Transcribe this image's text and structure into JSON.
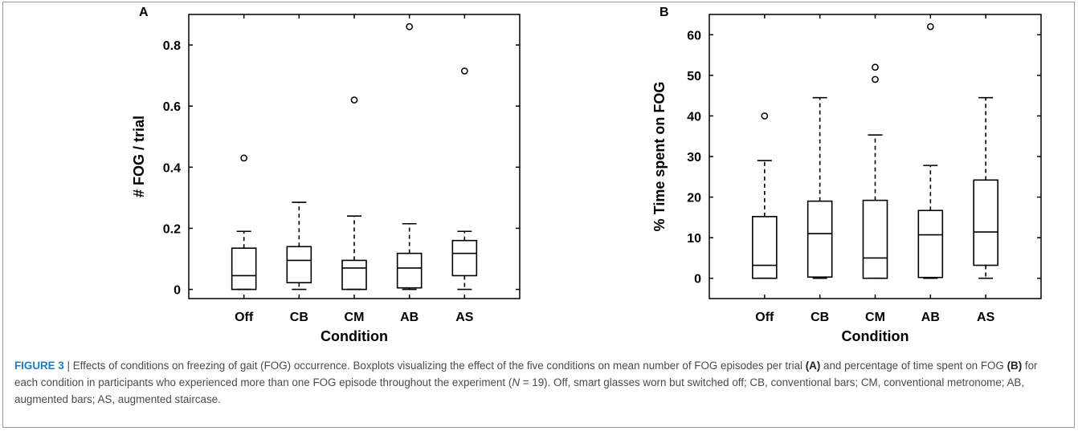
{
  "charts": [
    {
      "id": "A",
      "panel_label": "A",
      "ylabel": "# FOG / trial",
      "xlabel": "Condition",
      "yticks": [
        "0",
        "0.2",
        "0.4",
        "0.6",
        "0.8"
      ]
    },
    {
      "id": "B",
      "panel_label": "B",
      "ylabel": "% Time spent on FOG",
      "xlabel": "Condition",
      "yticks": [
        "0",
        "10",
        "20",
        "30",
        "40",
        "50",
        "60"
      ]
    }
  ],
  "chart_data": [
    {
      "type": "boxplot",
      "panel": "A",
      "xlabel": "Condition",
      "ylabel": "# FOG / trial",
      "ylim": [
        -0.03,
        0.9
      ],
      "yticks": [
        0,
        0.2,
        0.4,
        0.6,
        0.8
      ],
      "categories": [
        "Off",
        "CB",
        "CM",
        "AB",
        "AS"
      ],
      "boxes": [
        {
          "category": "Off",
          "whisker_low": 0.0,
          "q1": 0.0,
          "median": 0.045,
          "q3": 0.135,
          "whisker_high": 0.19,
          "outliers": [
            0.43
          ]
        },
        {
          "category": "CB",
          "whisker_low": 0.0,
          "q1": 0.022,
          "median": 0.095,
          "q3": 0.14,
          "whisker_high": 0.285,
          "outliers": []
        },
        {
          "category": "CM",
          "whisker_low": 0.0,
          "q1": 0.0,
          "median": 0.07,
          "q3": 0.095,
          "whisker_high": 0.24,
          "outliers": [
            0.62
          ]
        },
        {
          "category": "AB",
          "whisker_low": 0.0,
          "q1": 0.005,
          "median": 0.07,
          "q3": 0.118,
          "whisker_high": 0.215,
          "outliers": [
            0.86
          ]
        },
        {
          "category": "AS",
          "whisker_low": 0.0,
          "q1": 0.045,
          "median": 0.118,
          "q3": 0.16,
          "whisker_high": 0.19,
          "outliers": [
            0.715
          ]
        }
      ]
    },
    {
      "type": "boxplot",
      "panel": "B",
      "xlabel": "Condition",
      "ylabel": "% Time spent on FOG",
      "ylim": [
        -5,
        65
      ],
      "yticks": [
        0,
        10,
        20,
        30,
        40,
        50,
        60
      ],
      "categories": [
        "Off",
        "CB",
        "CM",
        "AB",
        "AS"
      ],
      "boxes": [
        {
          "category": "Off",
          "whisker_low": 0,
          "q1": 0,
          "median": 3.2,
          "q3": 15.2,
          "whisker_high": 29,
          "outliers": [
            40
          ]
        },
        {
          "category": "CB",
          "whisker_low": 0,
          "q1": 0.3,
          "median": 11,
          "q3": 19,
          "whisker_high": 44.5,
          "outliers": []
        },
        {
          "category": "CM",
          "whisker_low": 0,
          "q1": 0,
          "median": 5,
          "q3": 19.2,
          "whisker_high": 35.3,
          "outliers": [
            49,
            52
          ]
        },
        {
          "category": "AB",
          "whisker_low": 0,
          "q1": 0.2,
          "median": 10.7,
          "q3": 16.7,
          "whisker_high": 27.8,
          "outliers": [
            62
          ]
        },
        {
          "category": "AS",
          "whisker_low": 0,
          "q1": 3.2,
          "median": 11.4,
          "q3": 24.2,
          "whisker_high": 44.5,
          "outliers": []
        }
      ]
    }
  ],
  "caption": {
    "figure_label": "FIGURE 3",
    "separator": " | ",
    "part1": "Effects of conditions on freezing of gait (FOG) occurrence. Boxplots visualizing the effect of the five conditions on mean number of FOG episodes per trial ",
    "ref_a": "(A)",
    "part2": " and percentage of time spent on FOG ",
    "ref_b": "(B)",
    "part3": " for each condition in participants who experienced more than one FOG episode throughout the experiment (",
    "n_symbol": "N",
    "part4": " = 19). Off, smart glasses worn but switched off; CB, conventional bars; CM, conventional metronome; AB, augmented bars; AS, augmented staircase."
  }
}
